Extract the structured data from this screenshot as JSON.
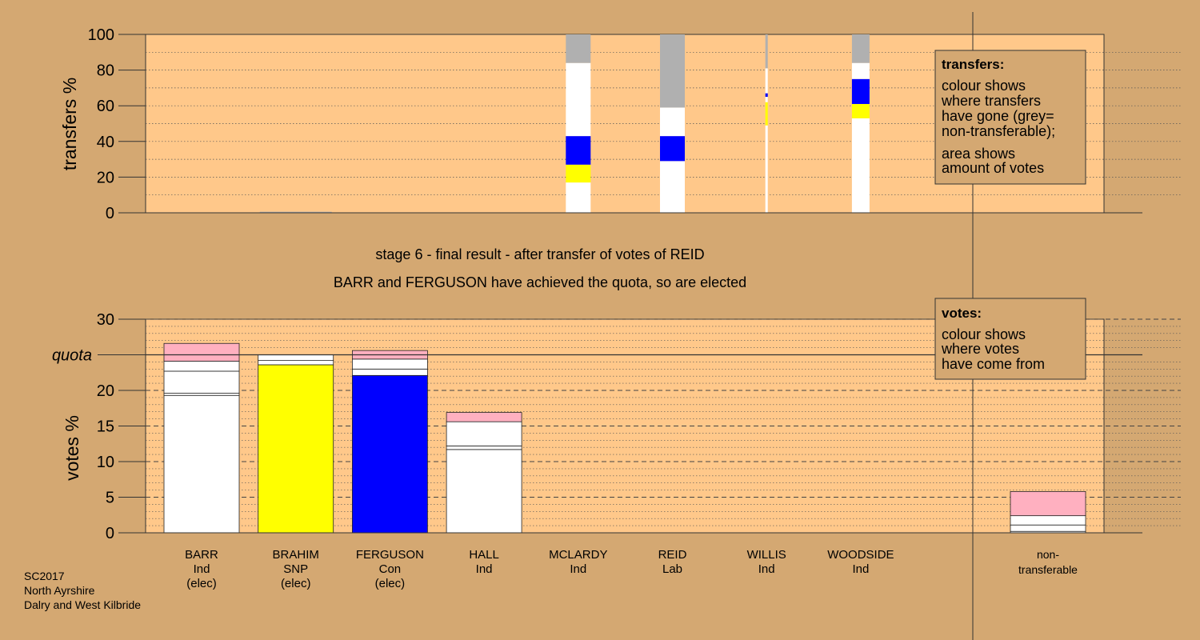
{
  "colors": {
    "background": "#d4a872",
    "plot": "#ffc88a",
    "legend_box": "#d4a872",
    "white": "#ffffff",
    "snp": "#ffff00",
    "con": "#0000ff",
    "lab": "#ffb0c0",
    "nontransferable": "#b0b0b0"
  },
  "stage_title": "stage 6 - final result - after transfer of votes of REID",
  "stage_subtitle": "BARR and FERGUSON have achieved the quota, so are elected",
  "footer": [
    "SC2017",
    "North Ayrshire",
    "Dalry and West Kilbride"
  ],
  "transfers_legend": {
    "heading": "transfers:",
    "lines": [
      "colour shows",
      "where transfers",
      "have gone (grey=",
      "non-transferable);",
      "area shows",
      "amount of votes"
    ]
  },
  "votes_legend": {
    "heading": "votes:",
    "lines": [
      "colour shows",
      "where votes",
      "have come from"
    ]
  },
  "chart_data": [
    {
      "type": "bar",
      "name": "transfers",
      "ylabel": "transfers %",
      "ylim": [
        0,
        100
      ],
      "yticks": [
        0,
        20,
        40,
        60,
        80,
        100
      ],
      "grid": "dotted",
      "columns": [
        {
          "slot": 1,
          "width_fraction": 0.02,
          "segments": [
            {
              "from": 0,
              "to": 0.6,
              "color": "nontransferable"
            }
          ]
        },
        {
          "slot": 4,
          "width_fraction": 1,
          "segments": [
            {
              "from": 0,
              "to": 17,
              "color": "white"
            },
            {
              "from": 17,
              "to": 27,
              "color": "snp"
            },
            {
              "from": 27,
              "to": 43,
              "color": "con"
            },
            {
              "from": 43,
              "to": 84,
              "color": "white"
            },
            {
              "from": 84,
              "to": 100,
              "color": "nontransferable"
            }
          ]
        },
        {
          "slot": 5,
          "width_fraction": 1,
          "segments": [
            {
              "from": 0,
              "to": 29,
              "color": "white"
            },
            {
              "from": 29,
              "to": 43,
              "color": "con"
            },
            {
              "from": 43,
              "to": 59,
              "color": "white"
            },
            {
              "from": 59,
              "to": 100,
              "color": "nontransferable"
            }
          ]
        },
        {
          "slot": 6,
          "width_fraction": 0.05,
          "segments": [
            {
              "from": 0,
              "to": 49,
              "color": "white"
            },
            {
              "from": 49,
              "to": 62,
              "color": "snp"
            },
            {
              "from": 62,
              "to": 65,
              "color": "white"
            },
            {
              "from": 65,
              "to": 67,
              "color": "con"
            },
            {
              "from": 67,
              "to": 81,
              "color": "white"
            },
            {
              "from": 81,
              "to": 100,
              "color": "nontransferable"
            }
          ]
        },
        {
          "slot": 7,
          "width_fraction": 0.45,
          "segments": [
            {
              "from": 0,
              "to": 53,
              "color": "white"
            },
            {
              "from": 53,
              "to": 61,
              "color": "snp"
            },
            {
              "from": 61,
              "to": 75,
              "color": "con"
            },
            {
              "from": 75,
              "to": 84,
              "color": "white"
            },
            {
              "from": 84,
              "to": 100,
              "color": "nontransferable"
            }
          ]
        }
      ]
    },
    {
      "type": "bar",
      "name": "votes",
      "ylabel": "votes %",
      "ylim": [
        0,
        30
      ],
      "yticks": [
        0,
        5,
        10,
        15,
        20,
        25,
        30
      ],
      "quota": 25,
      "quota_label": "quota",
      "grid": "dashed",
      "candidates": [
        {
          "name": "BARR",
          "party": "Ind",
          "status": "(elec)",
          "total": 26.6,
          "segments": [
            {
              "to": 19.3,
              "color": "white"
            },
            {
              "to": 19.6,
              "color": "white"
            },
            {
              "to": 22.7,
              "color": "white"
            },
            {
              "to": 24.1,
              "color": "white"
            },
            {
              "to": 26.6,
              "color": "lab"
            }
          ]
        },
        {
          "name": "BRAHIM",
          "party": "SNP",
          "status": "(elec)",
          "total": 25.0,
          "segments": [
            {
              "to": 23.6,
              "color": "snp"
            },
            {
              "to": 24.2,
              "color": "white"
            },
            {
              "to": 25.0,
              "color": "white"
            }
          ]
        },
        {
          "name": "FERGUSON",
          "party": "Con",
          "status": "(elec)",
          "total": 25.6,
          "segments": [
            {
              "to": 22.1,
              "color": "con"
            },
            {
              "to": 23.0,
              "color": "white"
            },
            {
              "to": 24.4,
              "color": "white"
            },
            {
              "to": 25.6,
              "color": "lab"
            }
          ]
        },
        {
          "name": "HALL",
          "party": "Ind",
          "status": "",
          "total": 16.9,
          "segments": [
            {
              "to": 11.7,
              "color": "white"
            },
            {
              "to": 12.2,
              "color": "white"
            },
            {
              "to": 15.6,
              "color": "white"
            },
            {
              "to": 16.9,
              "color": "lab"
            }
          ]
        },
        {
          "name": "MCLARDY",
          "party": "Ind",
          "status": "",
          "total": 0,
          "segments": []
        },
        {
          "name": "REID",
          "party": "Lab",
          "status": "",
          "total": 0,
          "segments": []
        },
        {
          "name": "WILLIS",
          "party": "Ind",
          "status": "",
          "total": 0,
          "segments": []
        },
        {
          "name": "WOODSIDE",
          "party": "Ind",
          "status": "",
          "total": 0,
          "segments": []
        }
      ],
      "nontransferable": {
        "label": [
          "non-",
          "transferable"
        ],
        "total": 5.8,
        "segments": [
          {
            "to": 0.2,
            "color": "white"
          },
          {
            "to": 1.1,
            "color": "white"
          },
          {
            "to": 2.4,
            "color": "white"
          },
          {
            "to": 5.8,
            "color": "lab"
          }
        ]
      }
    }
  ]
}
